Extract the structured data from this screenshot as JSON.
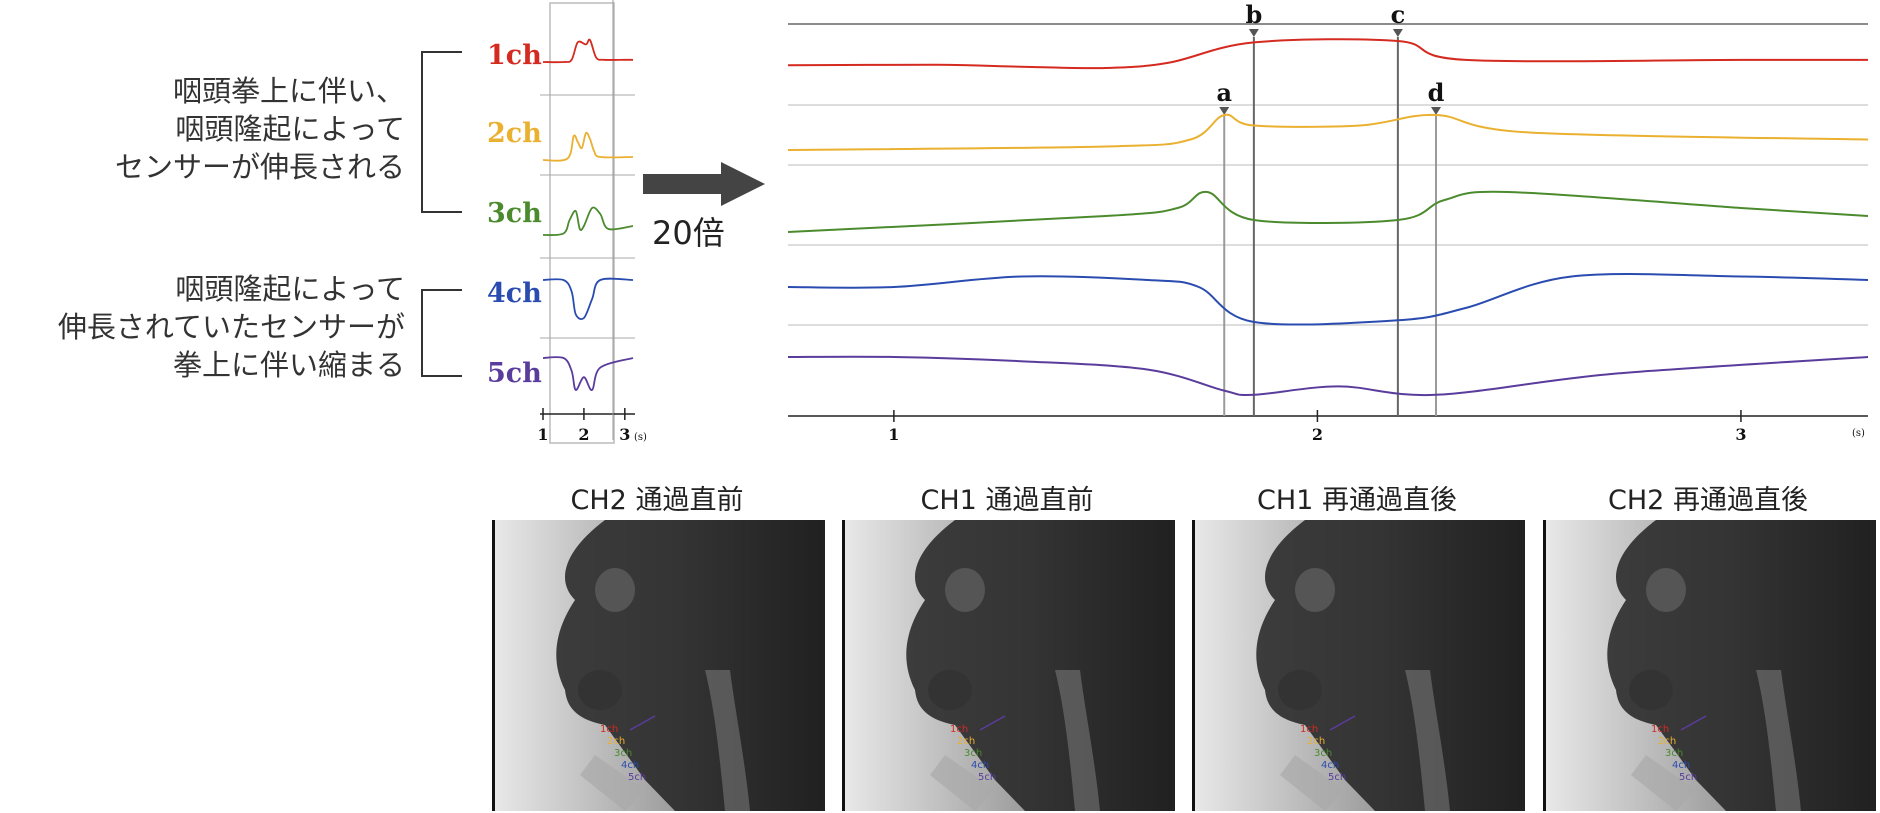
{
  "annotations": {
    "group1": [
      "咽頭拳上に伴い、",
      "咽頭隆起によって",
      "センサーが伸長される"
    ],
    "group2": [
      "咽頭隆起によって",
      "伸長されていたセンサーが",
      "拳上に伴い縮まる"
    ]
  },
  "arrow_label": "20倍",
  "channels": [
    {
      "label": "1ch",
      "color": "#d42a20"
    },
    {
      "label": "2ch",
      "color": "#eab030"
    },
    {
      "label": "3ch",
      "color": "#4b8b2e"
    },
    {
      "label": "4ch",
      "color": "#2a4cb0"
    },
    {
      "label": "5ch",
      "color": "#5a3c9c"
    }
  ],
  "markers": [
    "a",
    "b",
    "c",
    "d"
  ],
  "chart_data": [
    {
      "type": "line",
      "panel": "overview",
      "x_ticks": [
        "1",
        "2",
        "3"
      ],
      "x_unit": "(s)",
      "series": [
        {
          "name": "1ch",
          "x": [
            1.0,
            1.5,
            1.7,
            1.85,
            2.05,
            2.15,
            2.3,
            2.5,
            3.0,
            3.2
          ],
          "y": [
            0,
            0,
            0.1,
            0.9,
            0.8,
            1.0,
            0.2,
            0.1,
            0.1,
            0.1
          ]
        },
        {
          "name": "2ch",
          "x": [
            1.0,
            1.6,
            1.75,
            1.85,
            1.95,
            2.05,
            2.15,
            2.25,
            2.4,
            3.2
          ],
          "y": [
            0,
            0.05,
            0.8,
            0.6,
            0.4,
            0.9,
            0.7,
            0.3,
            0.1,
            0.1
          ]
        },
        {
          "name": "3ch",
          "x": [
            1.0,
            1.5,
            1.65,
            1.8,
            1.9,
            2.0,
            2.2,
            2.4,
            2.6,
            3.2
          ],
          "y": [
            0,
            0.05,
            0.5,
            0.8,
            0.2,
            0.3,
            0.9,
            0.7,
            0.2,
            0.3
          ]
        },
        {
          "name": "4ch",
          "x": [
            1.0,
            1.5,
            1.7,
            1.8,
            2.0,
            2.2,
            2.4,
            3.2
          ],
          "y": [
            0,
            0,
            -0.3,
            -0.9,
            -1.0,
            -0.5,
            0,
            0
          ]
        },
        {
          "name": "5ch",
          "x": [
            1.0,
            1.5,
            1.7,
            1.8,
            2.0,
            2.2,
            2.4,
            3.2
          ],
          "y": [
            0,
            0,
            -0.4,
            -1.0,
            -0.6,
            -1.0,
            -0.3,
            0
          ]
        }
      ]
    },
    {
      "type": "line",
      "panel": "zoomed",
      "x_ticks": [
        "1",
        "2",
        "3"
      ],
      "x_unit": "(s)",
      "markers": {
        "a": 1.78,
        "b": 1.85,
        "c": 2.19,
        "d": 2.28
      },
      "series": [
        {
          "name": "1ch",
          "x": [
            0.75,
            1.1,
            1.3,
            1.5,
            1.65,
            1.85,
            2.19,
            2.35,
            3.0,
            3.3
          ],
          "y": [
            0.1,
            0.12,
            0.05,
            0.0,
            0.2,
            0.95,
            1.0,
            0.3,
            0.3,
            0.3
          ]
        },
        {
          "name": "2ch",
          "x": [
            0.75,
            1.5,
            1.7,
            1.78,
            1.85,
            2.1,
            2.28,
            2.5,
            3.3
          ],
          "y": [
            0.0,
            0.1,
            0.3,
            1.0,
            0.7,
            0.7,
            1.0,
            0.5,
            0.3
          ]
        },
        {
          "name": "3ch",
          "x": [
            0.75,
            1.5,
            1.67,
            1.74,
            1.85,
            2.19,
            2.3,
            2.45,
            3.0,
            3.3
          ],
          "y": [
            0.0,
            0.4,
            0.6,
            1.0,
            0.3,
            0.3,
            0.8,
            1.0,
            0.6,
            0.4
          ]
        },
        {
          "name": "4ch",
          "x": [
            0.75,
            1.0,
            1.3,
            1.6,
            1.72,
            1.85,
            2.19,
            2.35,
            2.6,
            3.0,
            3.3
          ],
          "y": [
            0.0,
            0.0,
            0.3,
            0.2,
            0.0,
            -1.0,
            -0.95,
            -0.6,
            0.3,
            0.3,
            0.2
          ]
        },
        {
          "name": "5ch",
          "x": [
            0.75,
            1.0,
            1.3,
            1.6,
            1.78,
            1.85,
            2.05,
            2.28,
            2.7,
            3.3
          ],
          "y": [
            0.0,
            0.0,
            -0.1,
            -0.3,
            -0.8,
            -0.9,
            -0.7,
            -0.9,
            -0.4,
            0.0
          ]
        }
      ]
    }
  ],
  "xray_panels": [
    {
      "title": "CH2 通過直前",
      "labels": [
        "1ch",
        "2ch",
        "3ch",
        "4ch",
        "5ch"
      ]
    },
    {
      "title": "CH1 通過直前",
      "labels": [
        "1ch",
        "2ch",
        "3ch",
        "4ch",
        "5ch"
      ]
    },
    {
      "title": "CH1 再通過直後",
      "labels": [
        "1ch",
        "2ch",
        "3ch",
        "4ch",
        "5ch"
      ]
    },
    {
      "title": "CH2 再通過直後",
      "labels": [
        "1ch",
        "2ch",
        "3ch",
        "4ch",
        "5ch"
      ]
    }
  ]
}
